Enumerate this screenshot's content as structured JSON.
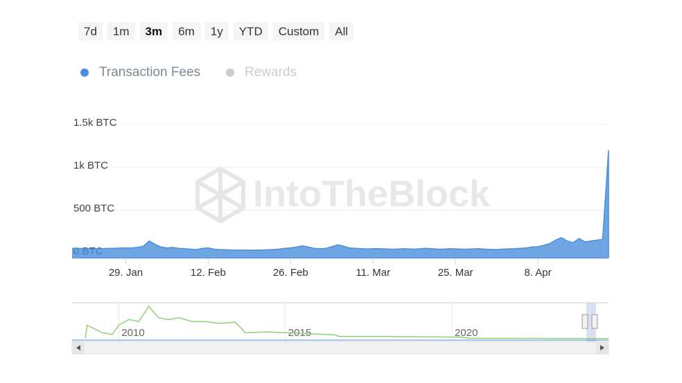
{
  "chart_data": {
    "type": "area",
    "range_buttons": [
      "7d",
      "1m",
      "3m",
      "6m",
      "1y",
      "YTD",
      "Custom",
      "All"
    ],
    "selected_range": 2,
    "watermark": "IntoTheBlock",
    "categories": [
      null,
      null,
      null,
      null,
      null,
      null,
      null,
      null,
      null,
      "29. Jan",
      null,
      null,
      null,
      null,
      null,
      null,
      null,
      null,
      null,
      null,
      null,
      null,
      null,
      "12. Feb",
      null,
      null,
      null,
      null,
      null,
      null,
      null,
      null,
      null,
      null,
      null,
      null,
      null,
      "26. Feb",
      null,
      null,
      null,
      null,
      null,
      null,
      null,
      null,
      null,
      null,
      null,
      null,
      null,
      "11. Mar",
      null,
      null,
      null,
      null,
      null,
      null,
      null,
      null,
      null,
      null,
      null,
      null,
      null,
      "25. Mar",
      null,
      null,
      null,
      null,
      null,
      null,
      null,
      null,
      null,
      null,
      null,
      null,
      null,
      "8. Apr",
      null,
      null,
      null,
      null,
      null,
      null,
      null,
      null,
      null,
      null,
      null,
      null
    ],
    "series": [
      {
        "name": "Transaction Fees",
        "color": "#4a8fdb",
        "visible": true,
        "values": [
          55,
          55,
          52,
          50,
          50,
          52,
          55,
          55,
          58,
          60,
          60,
          65,
          80,
          140,
          100,
          70,
          60,
          65,
          55,
          50,
          45,
          40,
          55,
          60,
          45,
          40,
          38,
          35,
          35,
          35,
          33,
          35,
          35,
          38,
          40,
          45,
          55,
          60,
          70,
          85,
          70,
          55,
          50,
          55,
          75,
          95,
          80,
          60,
          55,
          50,
          48,
          50,
          50,
          48,
          45,
          45,
          50,
          48,
          45,
          50,
          55,
          50,
          45,
          45,
          50,
          48,
          45,
          45,
          48,
          50,
          45,
          42,
          40,
          45,
          48,
          50,
          55,
          60,
          70,
          75,
          90,
          110,
          150,
          180,
          140,
          120,
          170,
          130,
          140,
          150,
          160,
          1200
        ]
      },
      {
        "name": "Rewards",
        "color": "#cccccc",
        "visible": false
      }
    ],
    "ylim": [
      0,
      1500
    ],
    "yticks": [
      {
        "value": 0,
        "label": "0 BTC"
      },
      {
        "value": 500,
        "label": "500 BTC"
      },
      {
        "value": 1000,
        "label": "1k BTC"
      },
      {
        "value": 1500,
        "label": "1.5k BTC"
      }
    ],
    "grid": true,
    "navigator": {
      "color": "#8fd07a",
      "xlim": [
        2008.6,
        2024.7
      ],
      "xticks": [
        2010,
        2015,
        2020
      ],
      "ylim": [
        0,
        100
      ],
      "x": [
        2009.0,
        2009.05,
        2009.5,
        2009.8,
        2010.0,
        2010.3,
        2010.6,
        2010.9,
        2011.2,
        2011.5,
        2011.8,
        2012.2,
        2012.6,
        2013.0,
        2013.5,
        2013.8,
        2014.5,
        2015.5,
        2016.5,
        2016.6,
        2018.0,
        2020.3,
        2020.5,
        2024.7
      ],
      "values": [
        5,
        40,
        20,
        15,
        40,
        55,
        50,
        90,
        60,
        55,
        60,
        50,
        50,
        45,
        48,
        20,
        22,
        18,
        14,
        10,
        10,
        8,
        5,
        4
      ]
    }
  }
}
